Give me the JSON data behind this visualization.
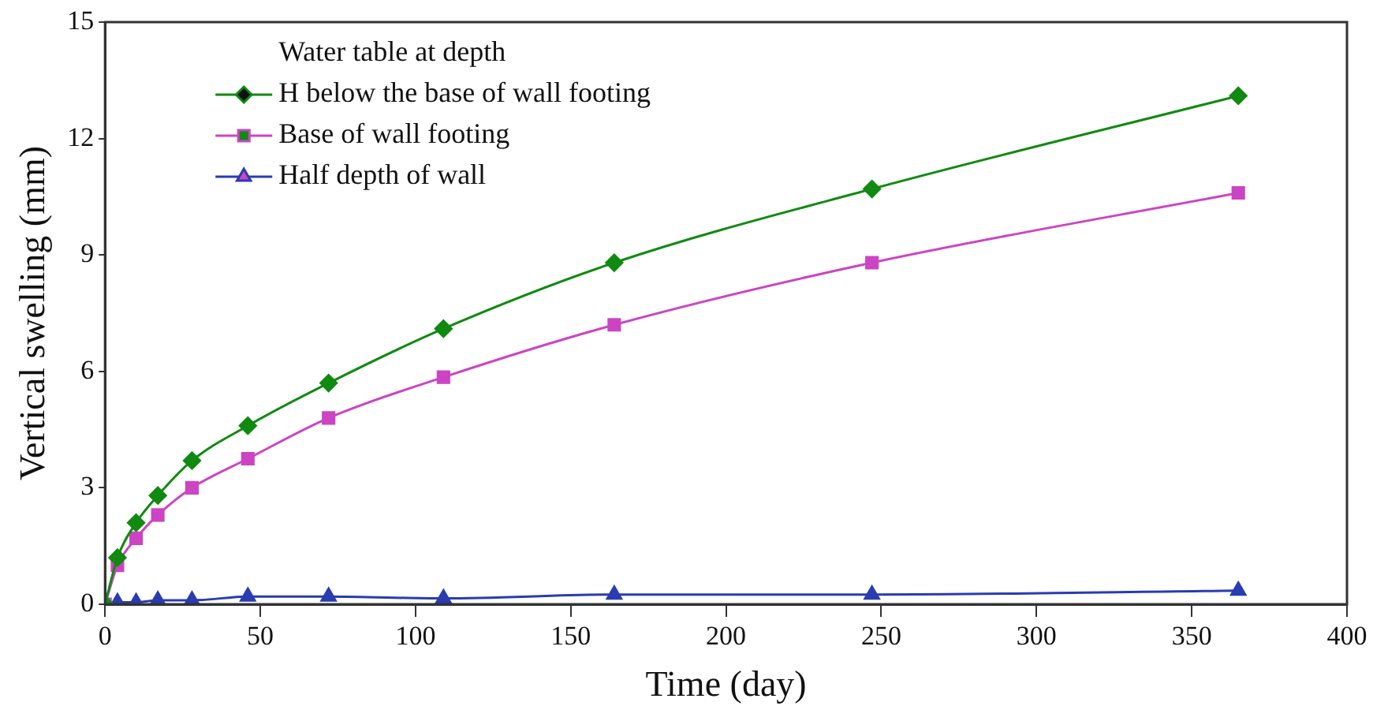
{
  "chart_data": {
    "type": "line",
    "xlabel": "Time (day)",
    "ylabel": "Vertical swelling (mm)",
    "legend_title": "Water table at depth",
    "legend": "top left",
    "grid": false,
    "xlim": [
      0,
      400
    ],
    "xticks": [
      0,
      50,
      100,
      150,
      200,
      250,
      300,
      350,
      400
    ],
    "ylim": [
      0,
      15
    ],
    "yticks": [
      0,
      3,
      6,
      9,
      12,
      15
    ],
    "x": [
      0,
      4,
      10,
      17,
      28,
      46,
      72,
      109,
      164,
      247,
      365
    ],
    "series": [
      {
        "name": "H below the base of wall footing",
        "color": "#108a10",
        "marker": "diamond",
        "values": [
          0,
          1.2,
          2.1,
          2.8,
          3.7,
          4.6,
          5.7,
          7.1,
          8.8,
          10.7,
          13.1
        ]
      },
      {
        "name": "Base of wall footing",
        "color": "#cc44c4",
        "marker": "square",
        "values": [
          0,
          1.0,
          1.7,
          2.3,
          3.0,
          3.75,
          4.8,
          5.85,
          7.2,
          8.8,
          10.6
        ]
      },
      {
        "name": "Half depth of wall",
        "color": "#2a3cb0",
        "marker": "triangle",
        "values": [
          0,
          0.05,
          0.05,
          0.1,
          0.1,
          0.2,
          0.2,
          0.15,
          0.25,
          0.25,
          0.35
        ]
      }
    ]
  }
}
